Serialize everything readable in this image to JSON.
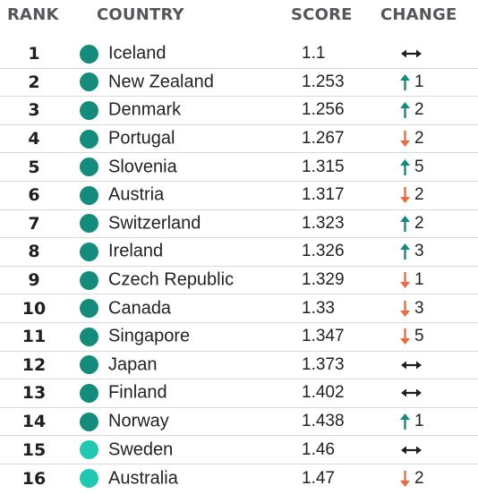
{
  "headers": {
    "rank": "RANK",
    "country": "COUNTRY",
    "score": "SCORE",
    "change": "CHANGE"
  },
  "colors": {
    "dot_dark": "#138c7b",
    "dot_light": "#1dc9b0",
    "up_arrow": "#138c7b",
    "down_arrow": "#ef6a3b",
    "same_arrow": "#1f1f1f"
  },
  "rows": [
    {
      "rank": "1",
      "country": "Iceland",
      "score": "1.1",
      "direction": "same",
      "change": ""
    },
    {
      "rank": "2",
      "country": "New Zealand",
      "score": "1.253",
      "direction": "up",
      "change": "1"
    },
    {
      "rank": "3",
      "country": "Denmark",
      "score": "1.256",
      "direction": "up",
      "change": "2"
    },
    {
      "rank": "4",
      "country": "Portugal",
      "score": "1.267",
      "direction": "down",
      "change": "2"
    },
    {
      "rank": "5",
      "country": "Slovenia",
      "score": "1.315",
      "direction": "up",
      "change": "5"
    },
    {
      "rank": "6",
      "country": "Austria",
      "score": "1.317",
      "direction": "down",
      "change": "2"
    },
    {
      "rank": "7",
      "country": "Switzerland",
      "score": "1.323",
      "direction": "up",
      "change": "2"
    },
    {
      "rank": "8",
      "country": "Ireland",
      "score": "1.326",
      "direction": "up",
      "change": "3"
    },
    {
      "rank": "9",
      "country": "Czech Republic",
      "score": "1.329",
      "direction": "down",
      "change": "1"
    },
    {
      "rank": "10",
      "country": "Canada",
      "score": "1.33",
      "direction": "down",
      "change": "3"
    },
    {
      "rank": "11",
      "country": "Singapore",
      "score": "1.347",
      "direction": "down",
      "change": "5"
    },
    {
      "rank": "12",
      "country": "Japan",
      "score": "1.373",
      "direction": "same",
      "change": ""
    },
    {
      "rank": "13",
      "country": "Finland",
      "score": "1.402",
      "direction": "same",
      "change": ""
    },
    {
      "rank": "14",
      "country": "Norway",
      "score": "1.438",
      "direction": "up",
      "change": "1"
    },
    {
      "rank": "15",
      "country": "Sweden",
      "score": "1.46",
      "direction": "same",
      "change": ""
    },
    {
      "rank": "16",
      "country": "Australia",
      "score": "1.47",
      "direction": "down",
      "change": "2"
    }
  ],
  "dot_styles": [
    "dark",
    "dark",
    "dark",
    "dark",
    "dark",
    "dark",
    "dark",
    "dark",
    "dark",
    "dark",
    "dark",
    "dark",
    "dark",
    "dark",
    "light",
    "light"
  ]
}
